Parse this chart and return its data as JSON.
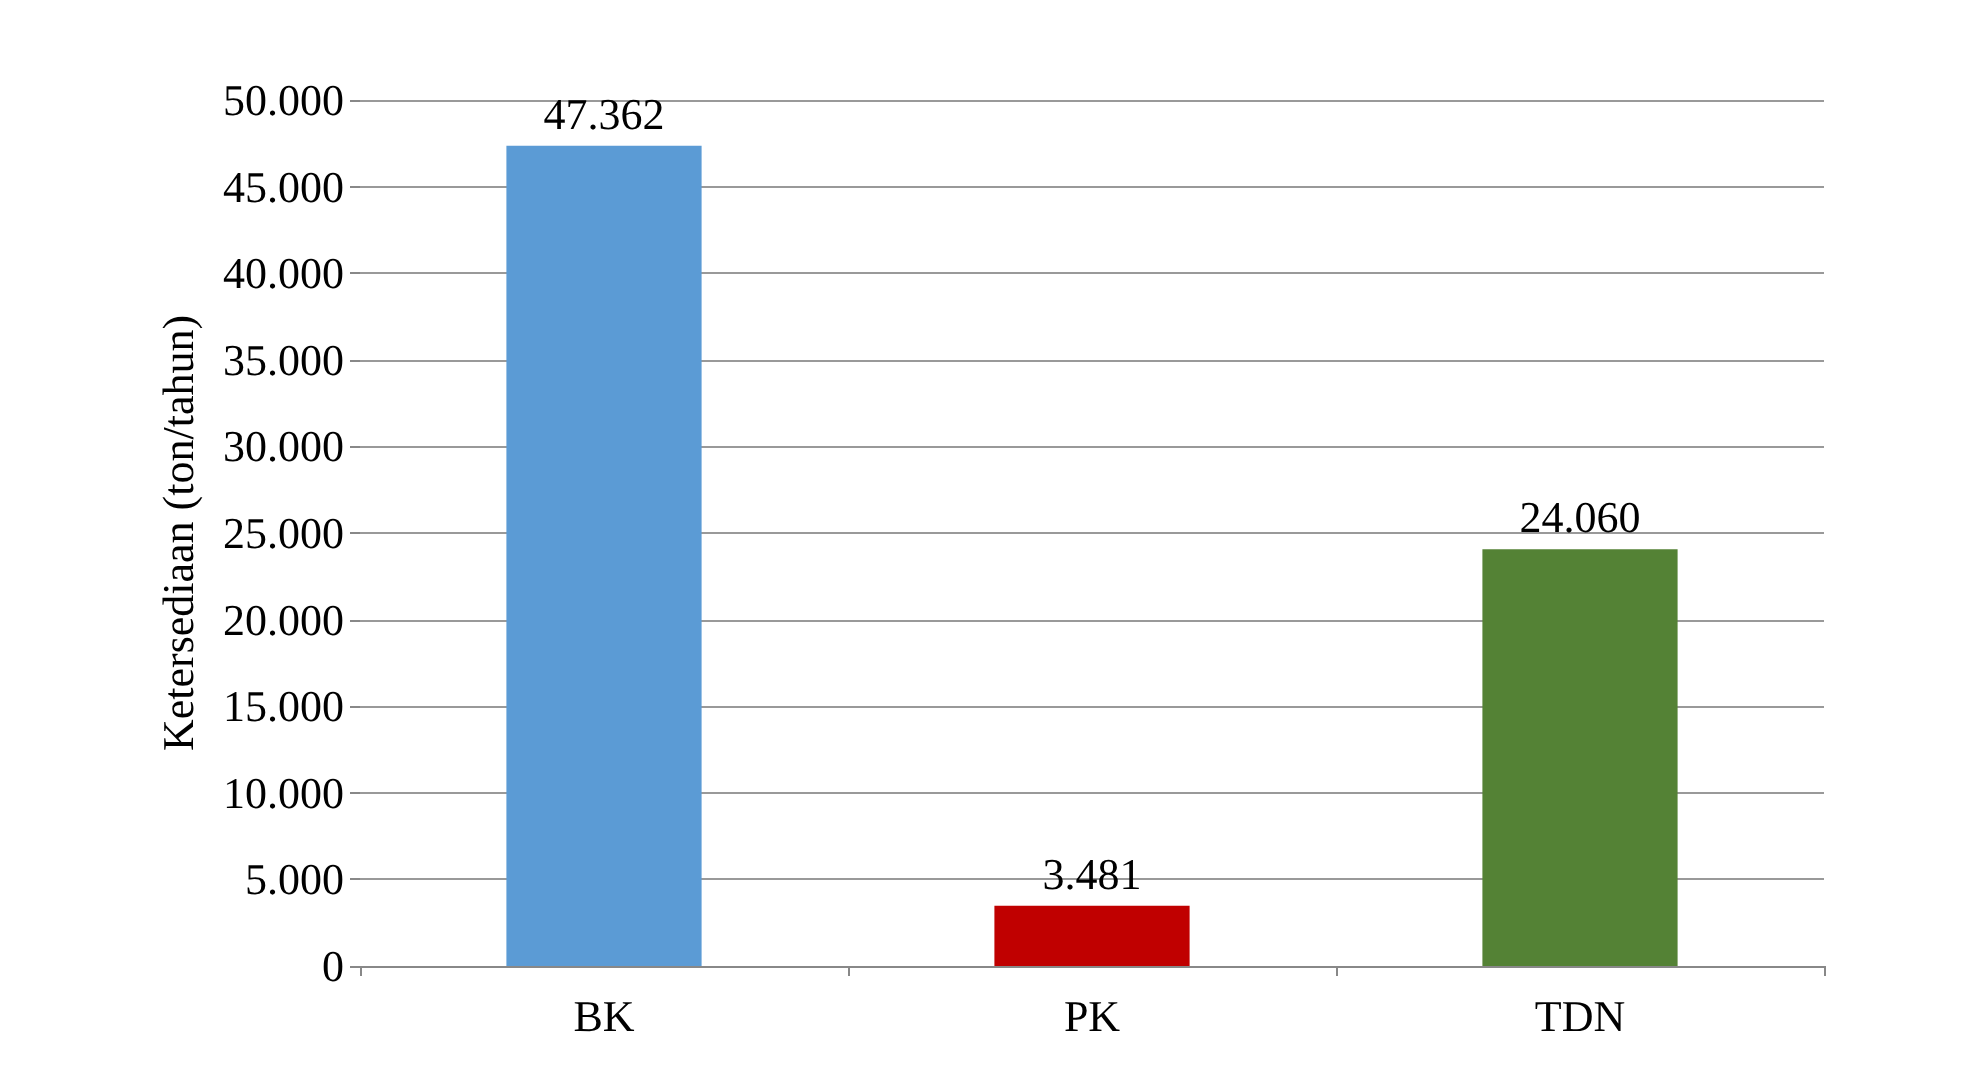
{
  "chart_data": {
    "type": "bar",
    "ylabel": "Ketersediaan (ton/tahun)",
    "categories": [
      "BK",
      "PK",
      "TDN"
    ],
    "values": [
      47362,
      3481,
      24060
    ],
    "colors": [
      "#5b9bd5",
      "#c00000",
      "#548235"
    ],
    "value_labels": [
      "47.362",
      "3.481",
      "24.060"
    ],
    "ylim": [
      0,
      50000
    ],
    "yticks": [
      {
        "value": 0,
        "label": "0"
      },
      {
        "value": 5000,
        "label": "5.000"
      },
      {
        "value": 10000,
        "label": "10.000"
      },
      {
        "value": 15000,
        "label": "15.000"
      },
      {
        "value": 20000,
        "label": "20.000"
      },
      {
        "value": 25000,
        "label": "25.000"
      },
      {
        "value": 30000,
        "label": "30.000"
      },
      {
        "value": 35000,
        "label": "35.000"
      },
      {
        "value": 40000,
        "label": "40.000"
      },
      {
        "value": 45000,
        "label": "45.000"
      },
      {
        "value": 50000,
        "label": "50.000"
      }
    ],
    "grid": true
  }
}
